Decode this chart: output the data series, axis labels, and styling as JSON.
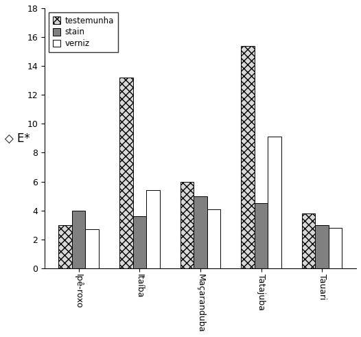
{
  "categories": [
    "Ipê-roxo",
    "Itaíba",
    "Maçaranduba",
    "Tatajuba",
    "Tauari"
  ],
  "series": {
    "testemunha": [
      3.0,
      13.2,
      6.0,
      15.4,
      3.8
    ],
    "stain": [
      4.0,
      3.6,
      5.0,
      4.5,
      3.0
    ],
    "verniz": [
      2.7,
      5.4,
      4.1,
      9.1,
      2.8
    ]
  },
  "legend_labels": [
    "testemunha",
    "stain",
    "verniz"
  ],
  "ylabel": "◇ E*",
  "ylim": [
    0,
    18
  ],
  "yticks": [
    0,
    2,
    4,
    6,
    8,
    10,
    12,
    14,
    16,
    18
  ],
  "bar_width": 0.22,
  "hatch_testemunha": "xxx",
  "color_testemunha": "#d8d8d8",
  "color_stain": "#808080",
  "color_verniz": "#ffffff",
  "edgecolor": "#000000",
  "background_color": "#ffffff",
  "figsize": [
    5.26,
    4.91
  ],
  "dpi": 100
}
